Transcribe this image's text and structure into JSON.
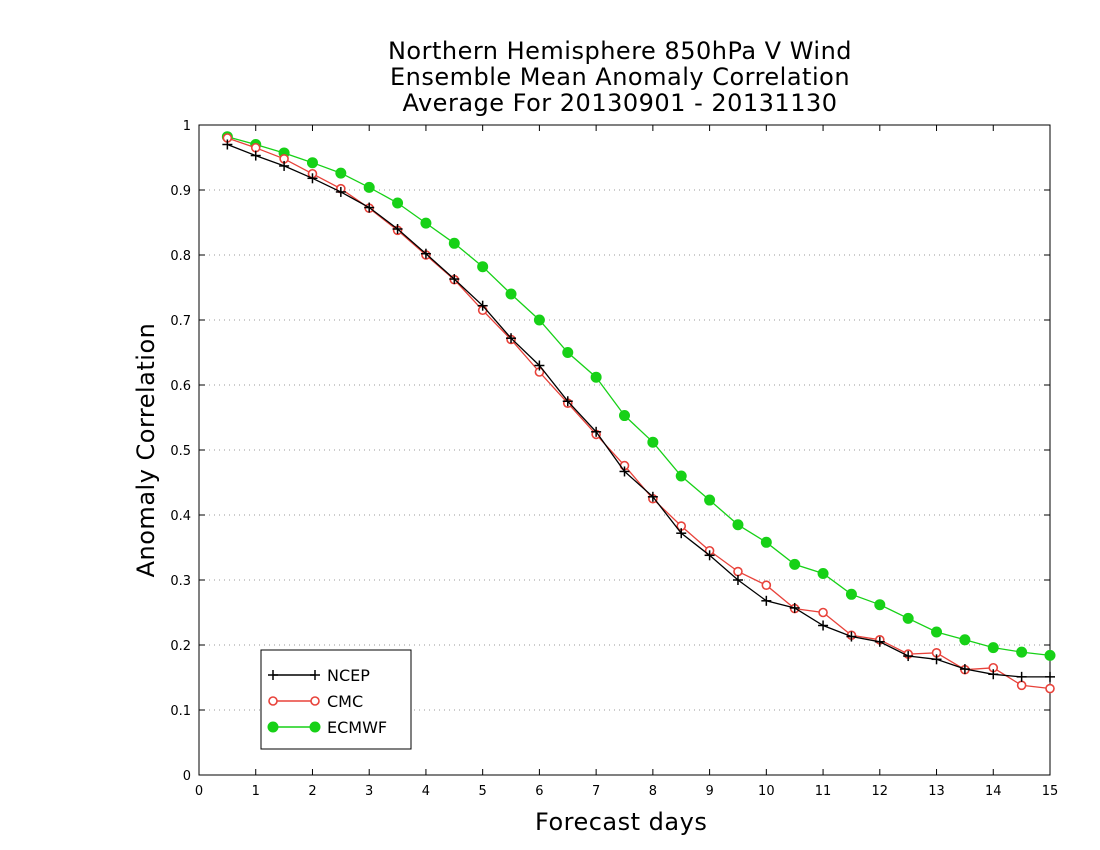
{
  "chart_data": {
    "type": "line",
    "title": [
      "Northern Hemisphere 850hPa V Wind",
      "Ensemble Mean Anomaly Correlation",
      "Average For 20130901 - 20131130"
    ],
    "xlabel": "Forecast days",
    "ylabel": "Anomaly Correlation",
    "xlim": [
      0,
      15
    ],
    "ylim": [
      0,
      1
    ],
    "x_ticks": [
      0,
      1,
      2,
      3,
      4,
      5,
      6,
      7,
      8,
      9,
      10,
      11,
      12,
      13,
      14,
      15
    ],
    "y_ticks": [
      0,
      0.1,
      0.2,
      0.3,
      0.4,
      0.5,
      0.6,
      0.7,
      0.8,
      0.9,
      1
    ],
    "y_tick_labels": [
      "0",
      "0.1",
      "0.2",
      "0.3",
      "0.4",
      "0.5",
      "0.6",
      "0.7",
      "0.8",
      "0.9",
      "1"
    ],
    "grid": "horizontal dotted",
    "legend_position": "bottom-left",
    "x": [
      0.5,
      1,
      1.5,
      2,
      2.5,
      3,
      3.5,
      4,
      4.5,
      5,
      5.5,
      6,
      6.5,
      7,
      7.5,
      8,
      8.5,
      9,
      9.5,
      10,
      10.5,
      11,
      11.5,
      12,
      12.5,
      13,
      13.5,
      14,
      14.5,
      15
    ],
    "series": [
      {
        "name": "NCEP",
        "color": "#000000",
        "marker": "plus",
        "values": [
          0.97,
          0.953,
          0.937,
          0.918,
          0.897,
          0.873,
          0.84,
          0.802,
          0.763,
          0.722,
          0.672,
          0.63,
          0.575,
          0.528,
          0.467,
          0.428,
          0.372,
          0.338,
          0.3,
          0.268,
          0.257,
          0.23,
          0.213,
          0.205,
          0.183,
          0.178,
          0.163,
          0.155,
          0.151,
          0.151
        ]
      },
      {
        "name": "CMC",
        "color": "#e8423a",
        "marker": "open-circle",
        "values": [
          0.98,
          0.965,
          0.948,
          0.925,
          0.902,
          0.872,
          0.838,
          0.8,
          0.762,
          0.715,
          0.67,
          0.62,
          0.572,
          0.524,
          0.476,
          0.425,
          0.383,
          0.345,
          0.313,
          0.292,
          0.256,
          0.25,
          0.215,
          0.208,
          0.186,
          0.188,
          0.162,
          0.165,
          0.138,
          0.133
        ]
      },
      {
        "name": "ECMWF",
        "color": "#17d117",
        "marker": "filled-circle",
        "values": [
          0.982,
          0.97,
          0.957,
          0.942,
          0.926,
          0.904,
          0.88,
          0.849,
          0.818,
          0.782,
          0.74,
          0.7,
          0.65,
          0.612,
          0.553,
          0.512,
          0.46,
          0.423,
          0.385,
          0.358,
          0.324,
          0.31,
          0.278,
          0.262,
          0.241,
          0.22,
          0.208,
          0.196,
          0.189,
          0.184
        ]
      }
    ]
  }
}
